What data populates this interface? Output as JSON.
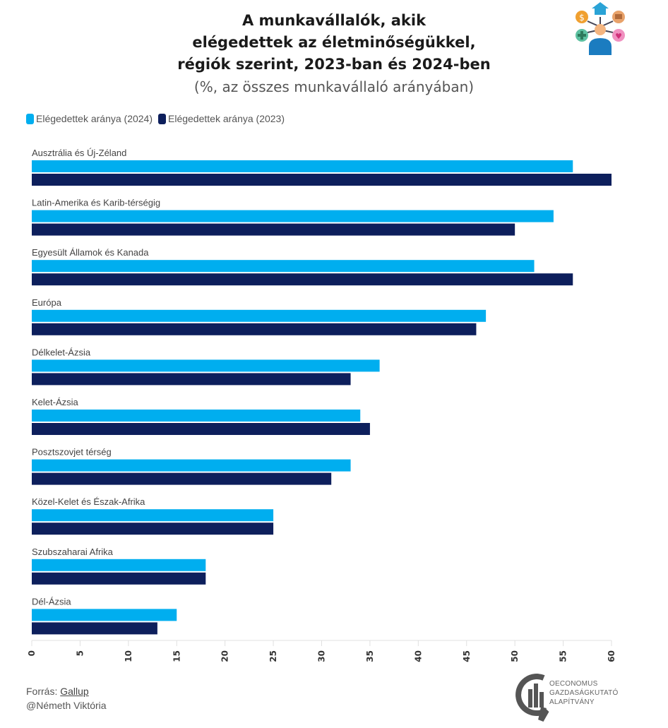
{
  "header": {
    "title_lines": [
      "A munkavállalók, akik",
      "elégedettek az életminőségükkel,",
      "régiók szerint, 2023-ban és 2024-ben"
    ],
    "subtitle": "(%, az összes munkavállaló arányában)",
    "icon": "people-wellbeing-icon"
  },
  "colors": {
    "series_2024": "#00aeef",
    "series_2023": "#0d1f5c",
    "axis": "#e0e0e0"
  },
  "chart_data": {
    "type": "bar",
    "orientation": "horizontal",
    "title": "A munkavállalók, akik elégedettek az életminőségükkel, régiók szerint, 2023-ban és 2024-ben",
    "subtitle": "(%, az összes munkavállaló arányában)",
    "xlabel": "",
    "ylabel": "",
    "xlim": [
      0,
      60
    ],
    "xticks": [
      0,
      5,
      10,
      15,
      20,
      25,
      30,
      35,
      40,
      45,
      50,
      55,
      60
    ],
    "grid": false,
    "legend_position": "top-left",
    "categories": [
      "Ausztrália és Új-Zéland",
      "Latin-Amerika és Karib-térségig",
      "Egyesült Államok és Kanada",
      "Európa",
      "Délkelet-Ázsia",
      "Kelet-Ázsia",
      "Posztszovjet térség",
      "Közel-Kelet és Észak-Afrika",
      "Szubszaharai Afrika",
      "Dél-Ázsia"
    ],
    "series": [
      {
        "name": "Elégedettek aránya (2024)",
        "values": [
          56,
          54,
          52,
          47,
          36,
          34,
          33,
          25,
          18,
          15
        ]
      },
      {
        "name": "Elégedettek aránya (2023)",
        "values": [
          60,
          50,
          56,
          46,
          33,
          35,
          31,
          25,
          18,
          13
        ]
      }
    ]
  },
  "footer": {
    "source_prefix": "Forrás: ",
    "source_link": "Gallup",
    "author": "@Németh Viktória",
    "org_lines": [
      "OECONOMUS",
      "GAZDASÁGKUTATÓ",
      "ALAPÍTVÁNY"
    ]
  }
}
